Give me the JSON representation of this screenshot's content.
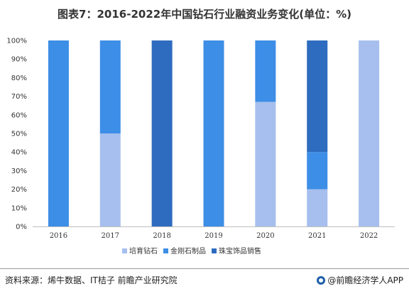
{
  "chart_data": {
    "type": "bar",
    "stacked": true,
    "percent_stacked": true,
    "title": "图表7：2016-2022年中国钻石行业融资业务变化(单位：%)",
    "categories": [
      "2016",
      "2017",
      "2018",
      "2019",
      "2020",
      "2021",
      "2022"
    ],
    "series": [
      {
        "name": "培育钻石",
        "color": "#a6bfee",
        "values": [
          0,
          50,
          0,
          0,
          67,
          20,
          100
        ]
      },
      {
        "name": "金刚石制品",
        "color": "#3d8ee6",
        "values": [
          100,
          50,
          0,
          100,
          33,
          20,
          0
        ]
      },
      {
        "name": "珠宝饰品销售",
        "color": "#2e6cbf",
        "values": [
          0,
          0,
          100,
          0,
          0,
          60,
          0
        ]
      }
    ],
    "yticks": [
      "0%",
      "10%",
      "20%",
      "30%",
      "40%",
      "50%",
      "60%",
      "70%",
      "80%",
      "90%",
      "100%"
    ],
    "ylim": [
      0,
      100
    ],
    "grid": false,
    "legend": "bottom"
  },
  "footer": {
    "source": "资料来源：烯牛数据、IT桔子 前瞻产业研究院",
    "brand": "@前瞻经济学人APP"
  }
}
